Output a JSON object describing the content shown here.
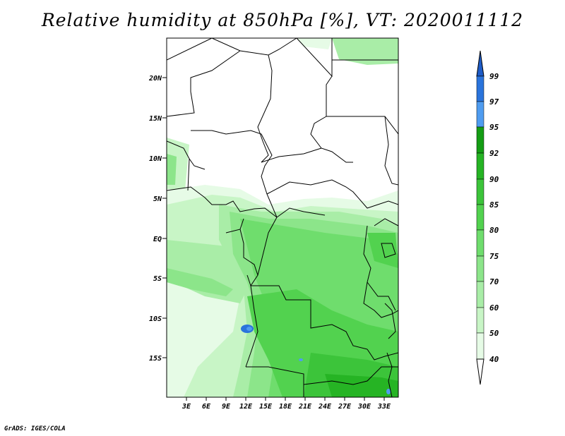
{
  "title": "Relative humidity at 850hPa [%], VT: 2020011112",
  "credit": "GrADS: IGES/COLA",
  "map": {
    "region": "Central Africa",
    "lat_labels": [
      "20N",
      "15N",
      "10N",
      "5N",
      "EQ",
      "5S",
      "10S",
      "15S"
    ],
    "lon_labels": [
      "3E",
      "6E",
      "9E",
      "12E",
      "15E",
      "18E",
      "21E",
      "24E",
      "27E",
      "30E",
      "33E"
    ]
  },
  "colorbar": {
    "levels": [
      "99",
      "97",
      "95",
      "92",
      "90",
      "85",
      "80",
      "75",
      "70",
      "60",
      "50",
      "40"
    ],
    "colors": {
      "below_40": "#ffffff",
      "40_50": "#e6fbe6",
      "50_60": "#c8f5c6",
      "60_70": "#a9eda7",
      "70_75": "#8ce58a",
      "75_80": "#6fdd6d",
      "80_85": "#52d24f",
      "85_90": "#3cc43a",
      "90_92": "#26b424",
      "92_95": "#149d14",
      "95_97": "#4f9cf0",
      "97_99": "#2a74dc",
      "above_99": "#1e5cc8"
    }
  }
}
